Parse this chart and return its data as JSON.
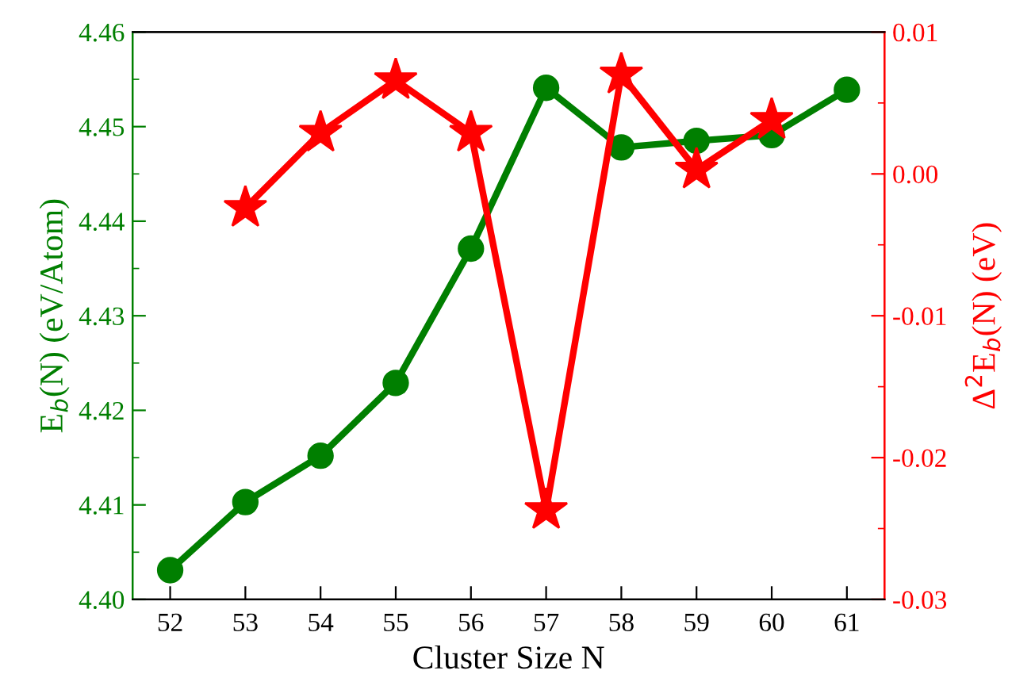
{
  "chart_data": {
    "type": "line",
    "xlabel": "Cluster Size N",
    "ylabel": "E$_{b}$(N) (eV/Atom)",
    "y2label": "Δ$^{2}$E$_{b}$(N) (eV)",
    "x": [
      52,
      53,
      54,
      55,
      56,
      57,
      58,
      59,
      60,
      61
    ],
    "xlim": [
      51.5,
      61.5
    ],
    "xticks": [
      52,
      53,
      54,
      55,
      56,
      57,
      58,
      59,
      60,
      61
    ],
    "ylim": [
      4.4,
      4.46
    ],
    "yticks": [
      {
        "value": 4.4,
        "label": "4.40"
      },
      4.41,
      4.42,
      4.43,
      4.44,
      4.45,
      4.46
    ],
    "y2lim": [
      -0.03,
      0.01
    ],
    "y2ticks": [
      -0.03,
      -0.02,
      -0.01,
      {
        "value": 0.0,
        "label": "0.00"
      },
      0.01
    ],
    "grid": false,
    "legend": false,
    "line_style": "solid",
    "series": [
      {
        "color": "#007f00",
        "marker": "circle",
        "values": [
          4.4031,
          4.4103,
          4.4152,
          4.4229,
          4.4371,
          4.4541,
          4.4478,
          4.4485,
          4.4491,
          4.4539
        ]
      },
      {
        "color": "#ff0000",
        "marker": "star",
        "axis": "y2",
        "values": [
          null,
          -0.0024,
          0.0029,
          0.0066,
          0.0029,
          -0.0237,
          0.007,
          0.0003,
          0.0038,
          null
        ]
      }
    ]
  }
}
